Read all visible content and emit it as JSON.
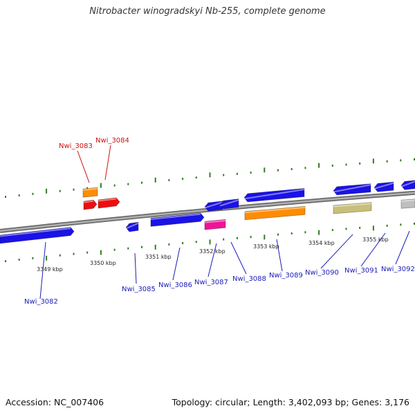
{
  "title": "Nitrobacter winogradskyi Nb-255, complete genome",
  "footer": {
    "accession": "Accession: NC_007406",
    "summary": "Topology: circular; Length: 3,402,093 bp; Genes: 3,176"
  },
  "colors": {
    "backbone": "#8c8c8c",
    "tick": "#2e7d1e",
    "blue": "#1a12e6",
    "red": "#ee0e0e",
    "orange": "#ff8c00",
    "magenta": "#ee1499",
    "khaki": "#c8c07a",
    "gray": "#bfbfbf",
    "label_blue": "#1a1ab8",
    "label_red": "#cc1111"
  },
  "scale_labels": [
    "3349 kbp",
    "3350 kbp",
    "3351 kbp",
    "3352 kbp",
    "3353 kbp",
    "3354 kbp",
    "3355 kbp"
  ],
  "gene_labels": [
    {
      "text": "Nwi_3082",
      "color": "blue"
    },
    {
      "text": "Nwi_3083",
      "color": "red"
    },
    {
      "text": "Nwi_3084",
      "color": "red"
    },
    {
      "text": "Nwi_3085",
      "color": "blue"
    },
    {
      "text": "Nwi_3086",
      "color": "blue"
    },
    {
      "text": "Nwi_3087",
      "color": "blue"
    },
    {
      "text": "Nwi_3088",
      "color": "blue"
    },
    {
      "text": "Nwi_3089",
      "color": "blue"
    },
    {
      "text": "Nwi_3090",
      "color": "blue"
    },
    {
      "text": "Nwi_3091",
      "color": "blue"
    },
    {
      "text": "Nwi_3092",
      "color": "blue"
    }
  ]
}
